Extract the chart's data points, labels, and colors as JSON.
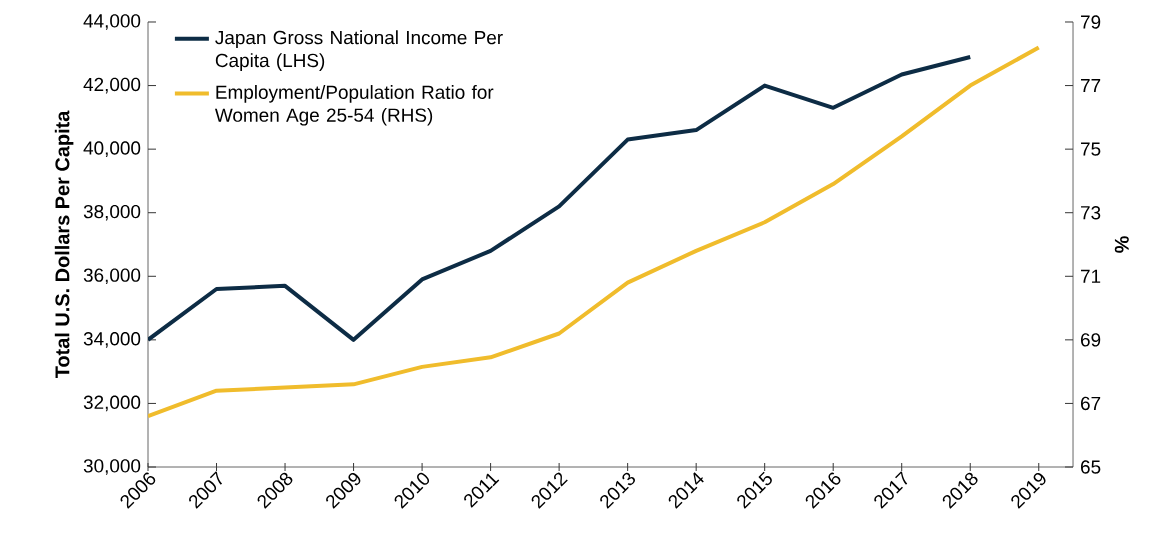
{
  "chart_data": {
    "type": "line",
    "ylabel": "Total U.S. Dollars Per Capita",
    "y2label": "%",
    "categories": [
      "2006",
      "2007",
      "2008",
      "2009",
      "2010",
      "2011",
      "2012",
      "2013",
      "2014",
      "2015",
      "2016",
      "2017",
      "2018",
      "2019"
    ],
    "series": [
      {
        "name": "Japan Gross National Income Per Capita (LHS)",
        "color": "#0d2c45",
        "values": [
          34000,
          35600,
          35700,
          34000,
          35900,
          36800,
          38200,
          40300,
          40600,
          42000,
          41300,
          42350,
          42900,
          null
        ]
      },
      {
        "name": "Employment/Population Ratio for Women Age 25-54 (RHS)",
        "color": "#f0bc2c",
        "axis": "y2",
        "values": [
          66.6,
          67.4,
          67.5,
          67.6,
          68.15,
          68.45,
          69.2,
          70.8,
          71.8,
          72.7,
          73.9,
          75.4,
          77.0,
          78.2
        ]
      }
    ],
    "ylim": [
      30000,
      44000
    ],
    "yticks": [
      {
        "value": 30000,
        "label": "30,000"
      },
      {
        "value": 32000,
        "label": "32,000"
      },
      {
        "value": 34000,
        "label": "34,000"
      },
      {
        "value": 36000,
        "label": "36,000"
      },
      {
        "value": 38000,
        "label": "38,000"
      },
      {
        "value": 40000,
        "label": "40,000"
      },
      {
        "value": 42000,
        "label": "42,000"
      },
      {
        "value": 44000,
        "label": "44,000"
      }
    ],
    "y2lim": [
      65,
      79
    ],
    "y2ticks": [
      65,
      67,
      69,
      71,
      73,
      75,
      77,
      79
    ],
    "legend": "top left",
    "grid": false,
    "marker": "none",
    "line_style": "solid"
  }
}
